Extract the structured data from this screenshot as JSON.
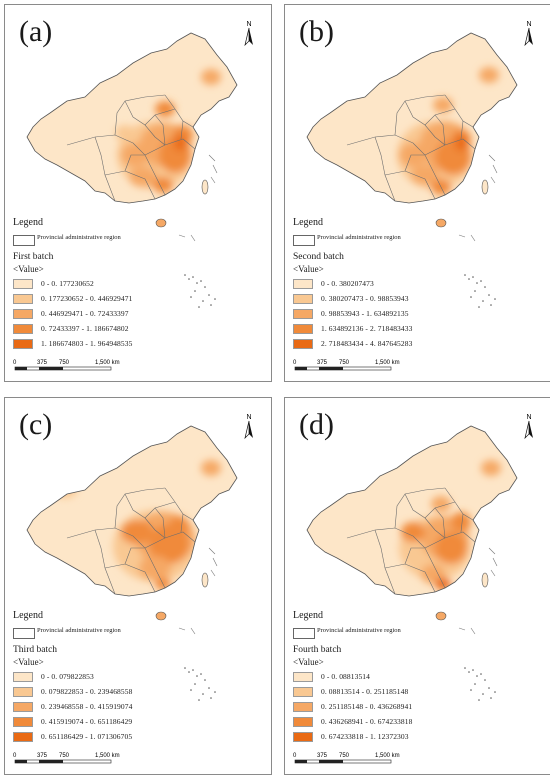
{
  "panels": [
    {
      "label": "(a)",
      "legend_title": "Legend",
      "provincial_label": "Provincial administrative region",
      "batch_title": "First batch",
      "value_label": "<Value>",
      "classes": [
        "0 - 0. 177230652",
        "0. 177230652 - 0. 446929471",
        "0. 446929471 - 0. 72433397",
        "0. 72433397 - 1. 186674802",
        "1. 186674803 - 1. 964948535"
      ]
    },
    {
      "label": "(b)",
      "legend_title": "Legend",
      "provincial_label": "Provincial administrative region",
      "batch_title": "Second batch",
      "value_label": "<Value>",
      "classes": [
        "0 - 0. 380207473",
        "0. 380207473 - 0. 98853943",
        "0. 98853943 - 1. 634892135",
        "1. 634892136 - 2. 718483433",
        "2. 718483434 - 4. 847645283"
      ]
    },
    {
      "label": "(c)",
      "legend_title": "Legend",
      "provincial_label": "Provincial administrative region",
      "batch_title": "Third batch",
      "value_label": "<Value>",
      "classes": [
        "0 - 0. 079822853",
        "0. 079822853 - 0. 239468558",
        "0. 239468558 - 0. 415919074",
        "0. 415919074 - 0. 651186429",
        "0. 651186429 - 1. 071306705"
      ]
    },
    {
      "label": "(d)",
      "legend_title": "Legend",
      "provincial_label": "Provincial administrative region",
      "batch_title": "Fourth batch",
      "value_label": "<Value>",
      "classes": [
        "0 - 0. 08813514",
        "0. 08813514 - 0. 251185148",
        "0. 251185148 - 0. 436268941",
        "0. 436268941 - 0. 674233818",
        "0. 674233818 - 1. 12372303"
      ]
    }
  ],
  "scale": {
    "ticks": [
      "0",
      "375",
      "750",
      "1,500 km"
    ]
  },
  "north_label": "N",
  "colors": [
    "#fde6c8",
    "#f9c892",
    "#f5a865",
    "#f08a3a",
    "#e96a14"
  ]
}
